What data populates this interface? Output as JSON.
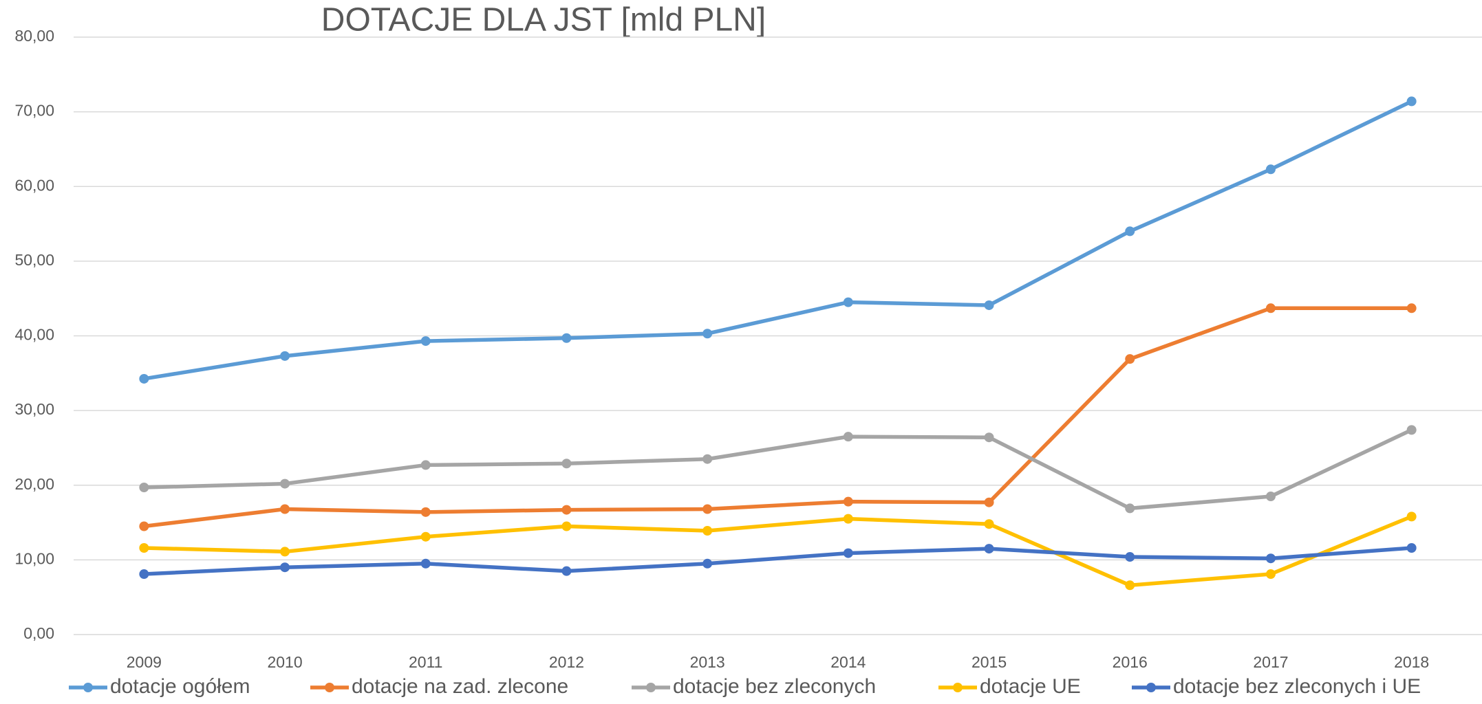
{
  "chart_data": {
    "type": "line",
    "title": "DOTACJE DLA JST [mld PLN]",
    "categories": [
      "2009",
      "2010",
      "2011",
      "2012",
      "2013",
      "2014",
      "2015",
      "2016",
      "2017",
      "2018"
    ],
    "series": [
      {
        "name": "dotacje ogółem",
        "color": "#5b9bd5",
        "values": [
          34.25,
          37.3,
          39.3,
          39.7,
          40.3,
          44.5,
          44.1,
          54.0,
          62.3,
          71.4
        ]
      },
      {
        "name": "dotacje na zad. zlecone",
        "color": "#ed7d31",
        "values": [
          14.5,
          16.8,
          16.4,
          16.7,
          16.8,
          17.8,
          17.7,
          36.9,
          43.7,
          43.7
        ]
      },
      {
        "name": "dotacje bez zleconych",
        "color": "#a5a5a5",
        "values": [
          19.7,
          20.2,
          22.7,
          22.9,
          23.5,
          26.5,
          26.4,
          16.9,
          18.5,
          27.4
        ]
      },
      {
        "name": "dotacje UE",
        "color": "#ffc000",
        "values": [
          11.6,
          11.1,
          13.1,
          14.5,
          13.9,
          15.5,
          14.8,
          6.6,
          8.1,
          15.8
        ]
      },
      {
        "name": "dotacje bez zleconych i UE",
        "color": "#4472c4",
        "values": [
          8.1,
          9.0,
          9.5,
          8.5,
          9.5,
          10.9,
          11.5,
          10.4,
          10.2,
          11.6
        ]
      }
    ],
    "ylim": [
      0,
      80
    ],
    "yticks": [
      {
        "value": 0,
        "label": "0,00"
      },
      {
        "value": 10,
        "label": "10,00"
      },
      {
        "value": 20,
        "label": "20,00"
      },
      {
        "value": 30,
        "label": "30,00"
      },
      {
        "value": 40,
        "label": "40,00"
      },
      {
        "value": 50,
        "label": "50,00"
      },
      {
        "value": 60,
        "label": "60,00"
      },
      {
        "value": 70,
        "label": "70,00"
      },
      {
        "value": 80,
        "label": "80,00"
      }
    ],
    "grid": true,
    "legend": "bottom"
  }
}
